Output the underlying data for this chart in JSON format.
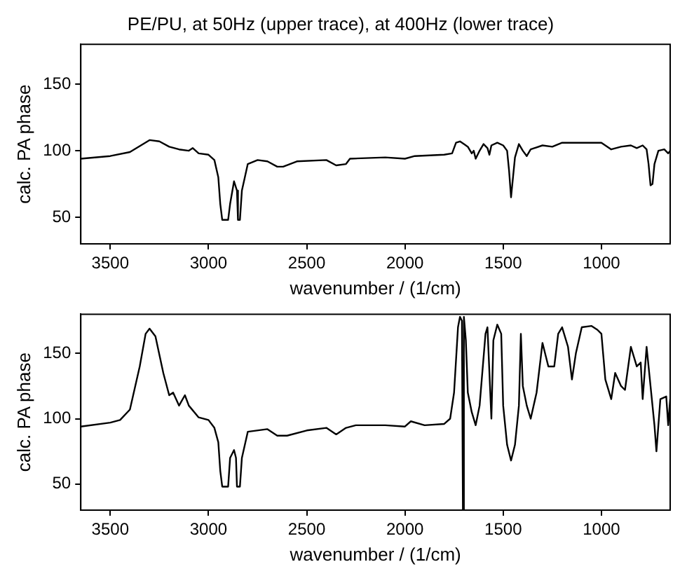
{
  "chart_data": [
    {
      "type": "line",
      "title": "PE/PU, at 50Hz (upper trace), at 400Hz (lower trace)",
      "xlabel": "wavenumber / (1/cm)",
      "ylabel": "calc. PA phase",
      "xlim": [
        3650,
        650
      ],
      "xticks": [
        3500,
        3000,
        2500,
        2000,
        1500,
        1000
      ],
      "ylim": [
        30,
        180
      ],
      "yticks": [
        50,
        100,
        150
      ],
      "grid": false,
      "legend": false,
      "series": [
        {
          "color": "#000000",
          "x": [
            3650,
            3500,
            3400,
            3300,
            3250,
            3200,
            3150,
            3100,
            3080,
            3050,
            3000,
            2970,
            2950,
            2940,
            2930,
            2900,
            2890,
            2870,
            2855,
            2850,
            2840,
            2830,
            2800,
            2750,
            2700,
            2650,
            2620,
            2550,
            2400,
            2350,
            2300,
            2280,
            2100,
            2000,
            1950,
            1800,
            1760,
            1740,
            1720,
            1700,
            1680,
            1660,
            1650,
            1640,
            1620,
            1600,
            1580,
            1570,
            1560,
            1530,
            1500,
            1480,
            1470,
            1460,
            1450,
            1440,
            1420,
            1400,
            1380,
            1360,
            1300,
            1250,
            1200,
            1000,
            950,
            900,
            850,
            820,
            790,
            770,
            760,
            750,
            740,
            730,
            710,
            680,
            660,
            650
          ],
          "values": [
            94,
            96,
            99,
            108,
            107,
            103,
            101,
            100,
            102,
            98,
            97,
            93,
            80,
            60,
            48,
            48,
            60,
            77,
            70,
            48,
            48,
            70,
            90,
            93,
            92,
            88,
            88,
            92,
            93,
            89,
            90,
            94,
            95,
            94,
            96,
            97,
            98,
            106,
            107,
            105,
            103,
            98,
            100,
            94,
            100,
            105,
            102,
            97,
            104,
            106,
            104,
            100,
            85,
            65,
            80,
            95,
            105,
            100,
            96,
            101,
            104,
            103,
            106,
            106,
            101,
            103,
            104,
            102,
            104,
            101,
            90,
            74,
            75,
            90,
            100,
            101,
            98,
            100
          ]
        }
      ]
    },
    {
      "type": "line",
      "xlabel": "wavenumber / (1/cm)",
      "ylabel": "calc. PA phase",
      "xlim": [
        3650,
        650
      ],
      "xticks": [
        3500,
        3000,
        2500,
        2000,
        1500,
        1000
      ],
      "ylim": [
        30,
        180
      ],
      "yticks": [
        50,
        100,
        150
      ],
      "grid": false,
      "legend": false,
      "series": [
        {
          "color": "#000000",
          "x": [
            3650,
            3500,
            3450,
            3400,
            3350,
            3320,
            3300,
            3270,
            3230,
            3200,
            3180,
            3150,
            3120,
            3100,
            3050,
            3000,
            2970,
            2950,
            2940,
            2930,
            2900,
            2890,
            2870,
            2860,
            2855,
            2840,
            2830,
            2800,
            2700,
            2650,
            2600,
            2500,
            2400,
            2350,
            2300,
            2250,
            2100,
            2000,
            1970,
            1900,
            1800,
            1770,
            1750,
            1730,
            1720,
            1710,
            1705,
            1700,
            1690,
            1680,
            1660,
            1640,
            1620,
            1590,
            1580,
            1560,
            1550,
            1530,
            1510,
            1500,
            1480,
            1460,
            1440,
            1420,
            1410,
            1400,
            1380,
            1360,
            1330,
            1300,
            1270,
            1240,
            1220,
            1200,
            1170,
            1150,
            1130,
            1100,
            1050,
            1020,
            1000,
            980,
            950,
            930,
            900,
            880,
            850,
            820,
            800,
            790,
            770,
            750,
            730,
            720,
            700,
            670,
            660,
            650
          ],
          "values": [
            94,
            97,
            99,
            107,
            140,
            165,
            169,
            163,
            135,
            118,
            120,
            110,
            118,
            110,
            101,
            99,
            93,
            82,
            60,
            48,
            48,
            70,
            76,
            70,
            48,
            48,
            70,
            90,
            92,
            87,
            87,
            91,
            93,
            88,
            93,
            95,
            95,
            94,
            98,
            95,
            96,
            100,
            120,
            170,
            178,
            175,
            30,
            178,
            160,
            120,
            105,
            95,
            110,
            165,
            170,
            100,
            160,
            172,
            165,
            110,
            80,
            68,
            80,
            110,
            165,
            125,
            110,
            100,
            120,
            158,
            140,
            140,
            165,
            170,
            155,
            130,
            150,
            170,
            171,
            168,
            165,
            130,
            115,
            135,
            125,
            122,
            155,
            140,
            143,
            115,
            155,
            125,
            95,
            75,
            115,
            117,
            95,
            115
          ]
        }
      ]
    }
  ]
}
